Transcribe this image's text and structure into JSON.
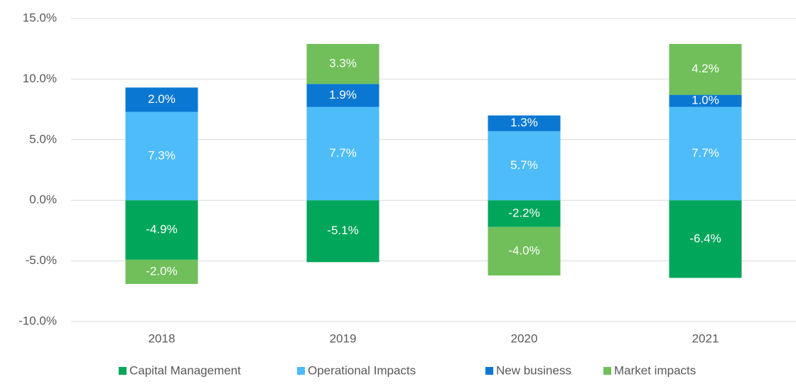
{
  "chart_data": {
    "type": "stacked_bar",
    "categories": [
      "2018",
      "2019",
      "2020",
      "2021"
    ],
    "series": [
      {
        "name": "Capital Management",
        "color": "#00a65a",
        "values": [
          -4.9,
          -5.1,
          -2.2,
          -6.4
        ],
        "value_labels": [
          "-4.9%",
          "-5.1%",
          "-2.2%",
          "-6.4%"
        ]
      },
      {
        "name": "Operational Impacts",
        "color": "#4dbcf8",
        "values": [
          7.3,
          7.7,
          5.7,
          7.7
        ],
        "value_labels": [
          "7.3%",
          "7.7%",
          "5.7%",
          "7.7%"
        ]
      },
      {
        "name": "New business",
        "color": "#0a78d2",
        "values": [
          2.0,
          1.9,
          1.3,
          1.0
        ],
        "value_labels": [
          "2.0%",
          "1.9%",
          "1.3%",
          "1.0%"
        ]
      },
      {
        "name": "Market impacts",
        "color": "#70bf5a",
        "values": [
          -2.0,
          3.3,
          -4.0,
          4.2
        ],
        "value_labels": [
          "-2.0%",
          "3.3%",
          "-4.0%",
          "4.2%"
        ]
      }
    ],
    "ylim": [
      -10,
      15
    ],
    "yticks": [
      {
        "value": -10,
        "label": "-10.0%"
      },
      {
        "value": -5,
        "label": "-5.0%"
      },
      {
        "value": 0,
        "label": "0.0%"
      },
      {
        "value": 5,
        "label": "5.0%"
      },
      {
        "value": 10,
        "label": "10.0%"
      },
      {
        "value": 15,
        "label": "15.0%"
      }
    ],
    "grid": true,
    "legend": "bottom"
  }
}
